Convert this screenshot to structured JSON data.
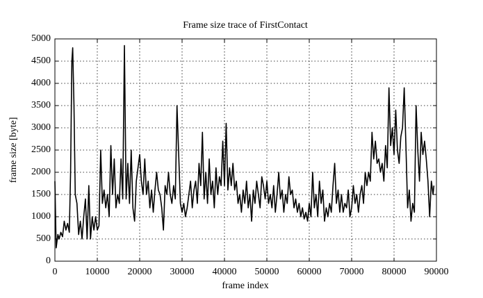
{
  "chart_data": {
    "type": "line",
    "title": "Frame size trace of FirstContact",
    "xlabel": "frame index",
    "ylabel": "frame size [byte]",
    "color": "#000000",
    "grid": true,
    "xlim": [
      0,
      90000
    ],
    "ylim": [
      0,
      5000
    ],
    "xticks": [
      0,
      10000,
      20000,
      30000,
      40000,
      50000,
      60000,
      70000,
      80000,
      90000
    ],
    "yticks": [
      0,
      500,
      1000,
      1500,
      2000,
      2500,
      3000,
      3500,
      4000,
      4500,
      5000
    ],
    "x": [
      0,
      300,
      700,
      1000,
      1400,
      1800,
      2200,
      2600,
      3000,
      3400,
      3700,
      4000,
      4200,
      4500,
      4800,
      5200,
      5600,
      6000,
      6400,
      6800,
      7200,
      7600,
      8000,
      8400,
      8800,
      9200,
      9600,
      10000,
      10400,
      10800,
      11200,
      11600,
      12000,
      12400,
      12800,
      13200,
      13600,
      14000,
      14400,
      14800,
      15200,
      15600,
      16000,
      16400,
      16800,
      17200,
      17600,
      18000,
      18400,
      18800,
      19200,
      19600,
      20000,
      20400,
      20800,
      21200,
      21600,
      22000,
      22400,
      22800,
      23200,
      23600,
      24000,
      24400,
      24800,
      25200,
      25600,
      26000,
      26400,
      26800,
      27200,
      27600,
      28000,
      28400,
      28800,
      29200,
      29600,
      30000,
      30400,
      30800,
      31200,
      31600,
      32000,
      32400,
      32800,
      33200,
      33600,
      34000,
      34400,
      34800,
      35200,
      35600,
      36000,
      36400,
      36800,
      37200,
      37600,
      38000,
      38400,
      38800,
      39200,
      39600,
      40000,
      40400,
      40800,
      41200,
      41600,
      42000,
      42400,
      42800,
      43200,
      43600,
      44000,
      44400,
      44800,
      45200,
      45600,
      46000,
      46400,
      46800,
      47200,
      47600,
      48000,
      48400,
      48800,
      49200,
      49600,
      50000,
      50400,
      50800,
      51200,
      51600,
      52000,
      52400,
      52800,
      53200,
      53600,
      54000,
      54400,
      54800,
      55200,
      55600,
      56000,
      56400,
      56800,
      57200,
      57600,
      58000,
      58400,
      58800,
      59200,
      59600,
      60000,
      60400,
      60800,
      61200,
      61600,
      62000,
      62400,
      62800,
      63200,
      63600,
      64000,
      64400,
      64800,
      65200,
      65600,
      66000,
      66400,
      66800,
      67200,
      67600,
      68000,
      68400,
      68800,
      69200,
      69600,
      70000,
      70400,
      70800,
      71200,
      71600,
      72000,
      72400,
      72800,
      73200,
      73600,
      74000,
      74400,
      74800,
      75200,
      75600,
      76000,
      76400,
      76800,
      77200,
      77600,
      78000,
      78400,
      78800,
      79200,
      79600,
      80000,
      80400,
      80800,
      81200,
      81600,
      82000,
      82400,
      82800,
      83200,
      83600,
      84000,
      84400,
      84800,
      85200,
      85600,
      86000,
      86400,
      86800,
      87200,
      87600,
      88000,
      88400,
      88800,
      89200,
      89400
    ],
    "values": [
      1800,
      300,
      600,
      500,
      650,
      550,
      900,
      700,
      850,
      650,
      2000,
      4500,
      4800,
      3500,
      1500,
      1300,
      600,
      900,
      500,
      1000,
      1400,
      500,
      1700,
      500,
      1000,
      700,
      1000,
      700,
      800,
      2500,
      1300,
      1600,
      1200,
      1500,
      1000,
      2600,
      1500,
      2300,
      1200,
      1500,
      1300,
      2300,
      1400,
      4850,
      1400,
      2200,
      1300,
      2500,
      1200,
      900,
      1800,
      2100,
      2400,
      1800,
      1500,
      2300,
      1500,
      1800,
      1200,
      1600,
      1100,
      1600,
      2000,
      1600,
      1500,
      1200,
      700,
      1700,
      1500,
      2000,
      1500,
      1300,
      1700,
      1400,
      3500,
      2400,
      1300,
      1100,
      1300,
      1000,
      1200,
      1500,
      1800,
      1200,
      1600,
      1800,
      1300,
      2200,
      1700,
      2900,
      1400,
      2000,
      1300,
      2300,
      1500,
      1800,
      1200,
      2100,
      1500,
      1900,
      1700,
      2700,
      1700,
      3100,
      1600,
      2100,
      1700,
      2200,
      1600,
      1800,
      1300,
      1500,
      1100,
      1600,
      1300,
      1800,
      1200,
      1500,
      900,
      1600,
      1300,
      1800,
      1500,
      1200,
      1900,
      1700,
      1400,
      1800,
      1300,
      1500,
      1200,
      1700,
      1100,
      1500,
      2000,
      1400,
      1600,
      1100,
      1500,
      1300,
      1900,
      1500,
      1600,
      1200,
      1400,
      1100,
      1300,
      1000,
      1200,
      950,
      1100,
      900,
      1300,
      1000,
      2000,
      1200,
      1500,
      1000,
      1800,
      1300,
      1600,
      900,
      1200,
      1000,
      1300,
      1100,
      1700,
      2200,
      1300,
      1600,
      1100,
      1500,
      1100,
      1300,
      1200,
      1600,
      1000,
      1200,
      1700,
      1300,
      1500,
      1100,
      1500,
      1700,
      1300,
      2000,
      1700,
      2000,
      1800,
      2900,
      2300,
      2700,
      2200,
      2300,
      2000,
      2200,
      1800,
      2600,
      2100,
      3900,
      2600,
      3000,
      2400,
      3400,
      2500,
      2200,
      2800,
      3000,
      3900,
      2600,
      1200,
      1600,
      900,
      1300,
      1100,
      3500,
      2500,
      1800,
      2900,
      2400,
      2700,
      2300,
      1800,
      1000,
      1800,
      1500,
      1700
    ]
  }
}
